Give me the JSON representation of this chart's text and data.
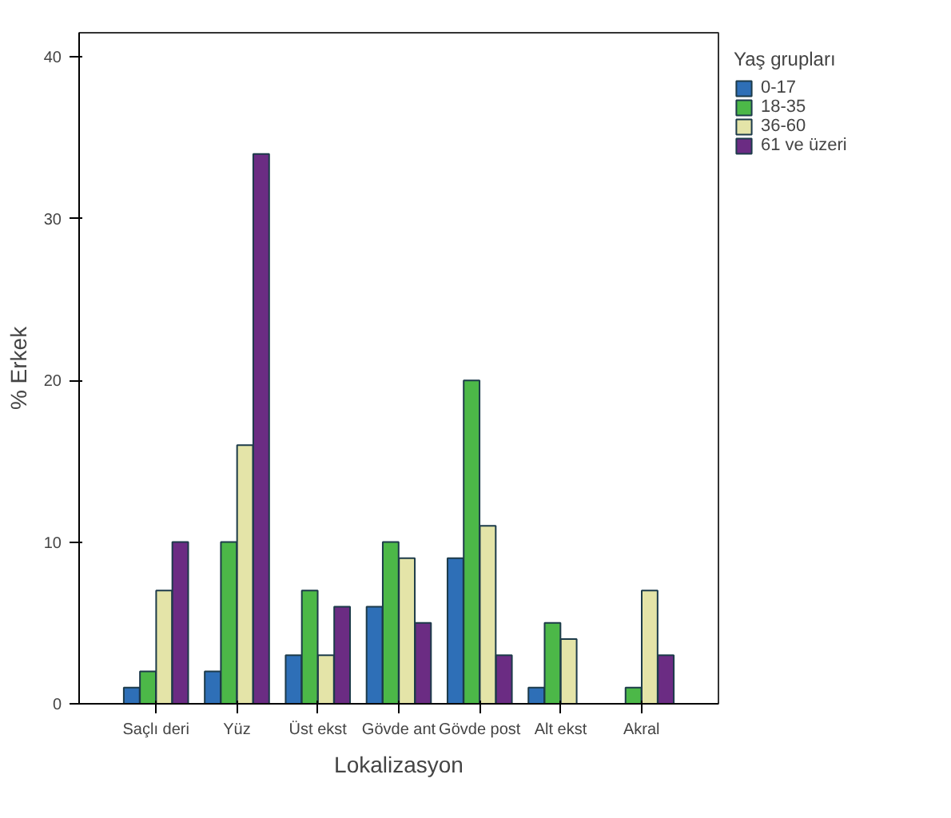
{
  "chart_data": {
    "type": "bar",
    "xlabel": "Lokalizasyon",
    "ylabel": "% Erkek",
    "legend_title": "Yaş grupları",
    "categories": [
      "Saçlı deri",
      "Yüz",
      "Üst ekst",
      "Gövde ant",
      "Gövde post",
      "Alt ekst",
      "Akral"
    ],
    "series": [
      {
        "name": "0-17",
        "color": "#2e6fb7",
        "values": [
          1,
          2,
          3,
          6,
          9,
          1,
          null
        ]
      },
      {
        "name": "18-35",
        "color": "#4cb848",
        "values": [
          2,
          10,
          7,
          10,
          20,
          5,
          1
        ]
      },
      {
        "name": "36-60",
        "color": "#e4e4a8",
        "values": [
          7,
          16,
          3,
          9,
          11,
          4,
          7
        ]
      },
      {
        "name": "61 ve üzeri",
        "color": "#6b2c83",
        "values": [
          10,
          34,
          6,
          5,
          3,
          null,
          3
        ]
      }
    ],
    "ylim": [
      0,
      41.5
    ],
    "yticks": [
      0,
      10,
      20,
      30,
      40
    ],
    "legend": "right"
  }
}
